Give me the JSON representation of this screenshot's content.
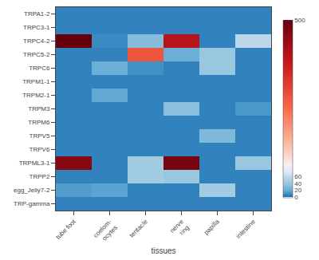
{
  "chart_data": {
    "type": "heatmap",
    "x_label": "tissues",
    "rows": [
      "TRPA1-2",
      "TRPC3-1",
      "TRPC4-2",
      "TRPC5-2",
      "TRPC6",
      "TRPM1-1",
      "TRPM2-1",
      "TRPM3",
      "TRPM6",
      "TRPV5",
      "TRPV6",
      "TRPML3-1",
      "TRPP2",
      "egg_Jelly7-2",
      "TRP-gamma"
    ],
    "cols": [
      "tube foot",
      "coelom-\nocytes",
      "tentacle",
      "nerve\nring",
      "papilla",
      "intestine"
    ],
    "cells": [
      [
        5,
        5,
        5,
        5,
        5,
        5
      ],
      [
        5,
        5,
        5,
        5,
        5,
        5
      ],
      [
        500,
        8,
        30,
        400,
        5,
        55
      ],
      [
        5,
        5,
        280,
        20,
        38,
        5
      ],
      [
        5,
        20,
        10,
        5,
        38,
        5
      ],
      [
        5,
        5,
        5,
        5,
        5,
        5
      ],
      [
        5,
        18,
        5,
        5,
        5,
        5
      ],
      [
        5,
        5,
        5,
        32,
        5,
        12
      ],
      [
        5,
        5,
        5,
        5,
        5,
        5
      ],
      [
        5,
        5,
        5,
        5,
        28,
        5
      ],
      [
        5,
        5,
        5,
        5,
        5,
        5
      ],
      [
        460,
        5,
        42,
        480,
        5,
        38
      ],
      [
        5,
        5,
        42,
        38,
        5,
        5
      ],
      [
        14,
        16,
        5,
        5,
        42,
        5
      ],
      [
        5,
        5,
        5,
        5,
        5,
        5
      ]
    ],
    "colorbar_range": [
      0,
      500
    ],
    "colorbar_ticks": [
      0,
      20,
      40,
      60,
      500
    ],
    "grid": false
  }
}
